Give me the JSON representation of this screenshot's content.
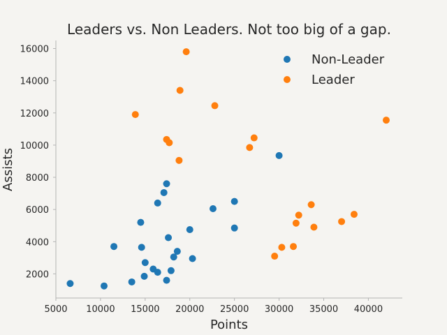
{
  "chart_data": {
    "type": "scatter",
    "title": "Leaders vs. Non Leaders. Not too big of a gap.",
    "xlabel": "Points",
    "ylabel": "Assists",
    "xlim": [
      5000,
      43800
    ],
    "ylim": [
      500,
      16500
    ],
    "xticks": [
      5000,
      10000,
      15000,
      20000,
      25000,
      30000,
      35000,
      40000
    ],
    "yticks": [
      2000,
      4000,
      6000,
      8000,
      10000,
      12000,
      14000,
      16000
    ],
    "grid": false,
    "legend_position": "top-right",
    "series": [
      {
        "name": "Non-Leader",
        "color": "#1f77b4",
        "points": [
          [
            6600,
            1400
          ],
          [
            10400,
            1250
          ],
          [
            11500,
            3700
          ],
          [
            13500,
            1500
          ],
          [
            14500,
            5200
          ],
          [
            14600,
            3650
          ],
          [
            14900,
            1850
          ],
          [
            15000,
            2700
          ],
          [
            15900,
            2300
          ],
          [
            16400,
            2100
          ],
          [
            16400,
            6400
          ],
          [
            17100,
            7050
          ],
          [
            17400,
            1600
          ],
          [
            17400,
            7600
          ],
          [
            17600,
            4250
          ],
          [
            17900,
            2200
          ],
          [
            18200,
            3050
          ],
          [
            18600,
            3400
          ],
          [
            20000,
            4750
          ],
          [
            20300,
            2950
          ],
          [
            22600,
            6050
          ],
          [
            25000,
            6500
          ],
          [
            25000,
            4850
          ],
          [
            30000,
            9350
          ]
        ]
      },
      {
        "name": "Leader",
        "color": "#ff7f0e",
        "points": [
          [
            13900,
            11900
          ],
          [
            17400,
            10350
          ],
          [
            17700,
            10150
          ],
          [
            18800,
            9050
          ],
          [
            18900,
            13400
          ],
          [
            19600,
            15800
          ],
          [
            22800,
            12450
          ],
          [
            26700,
            9850
          ],
          [
            27200,
            10450
          ],
          [
            29500,
            3100
          ],
          [
            30300,
            3650
          ],
          [
            31600,
            3700
          ],
          [
            31900,
            5150
          ],
          [
            32200,
            5650
          ],
          [
            33600,
            6300
          ],
          [
            33900,
            4900
          ],
          [
            37000,
            5250
          ],
          [
            38400,
            5700
          ],
          [
            42000,
            11550
          ]
        ]
      }
    ]
  }
}
